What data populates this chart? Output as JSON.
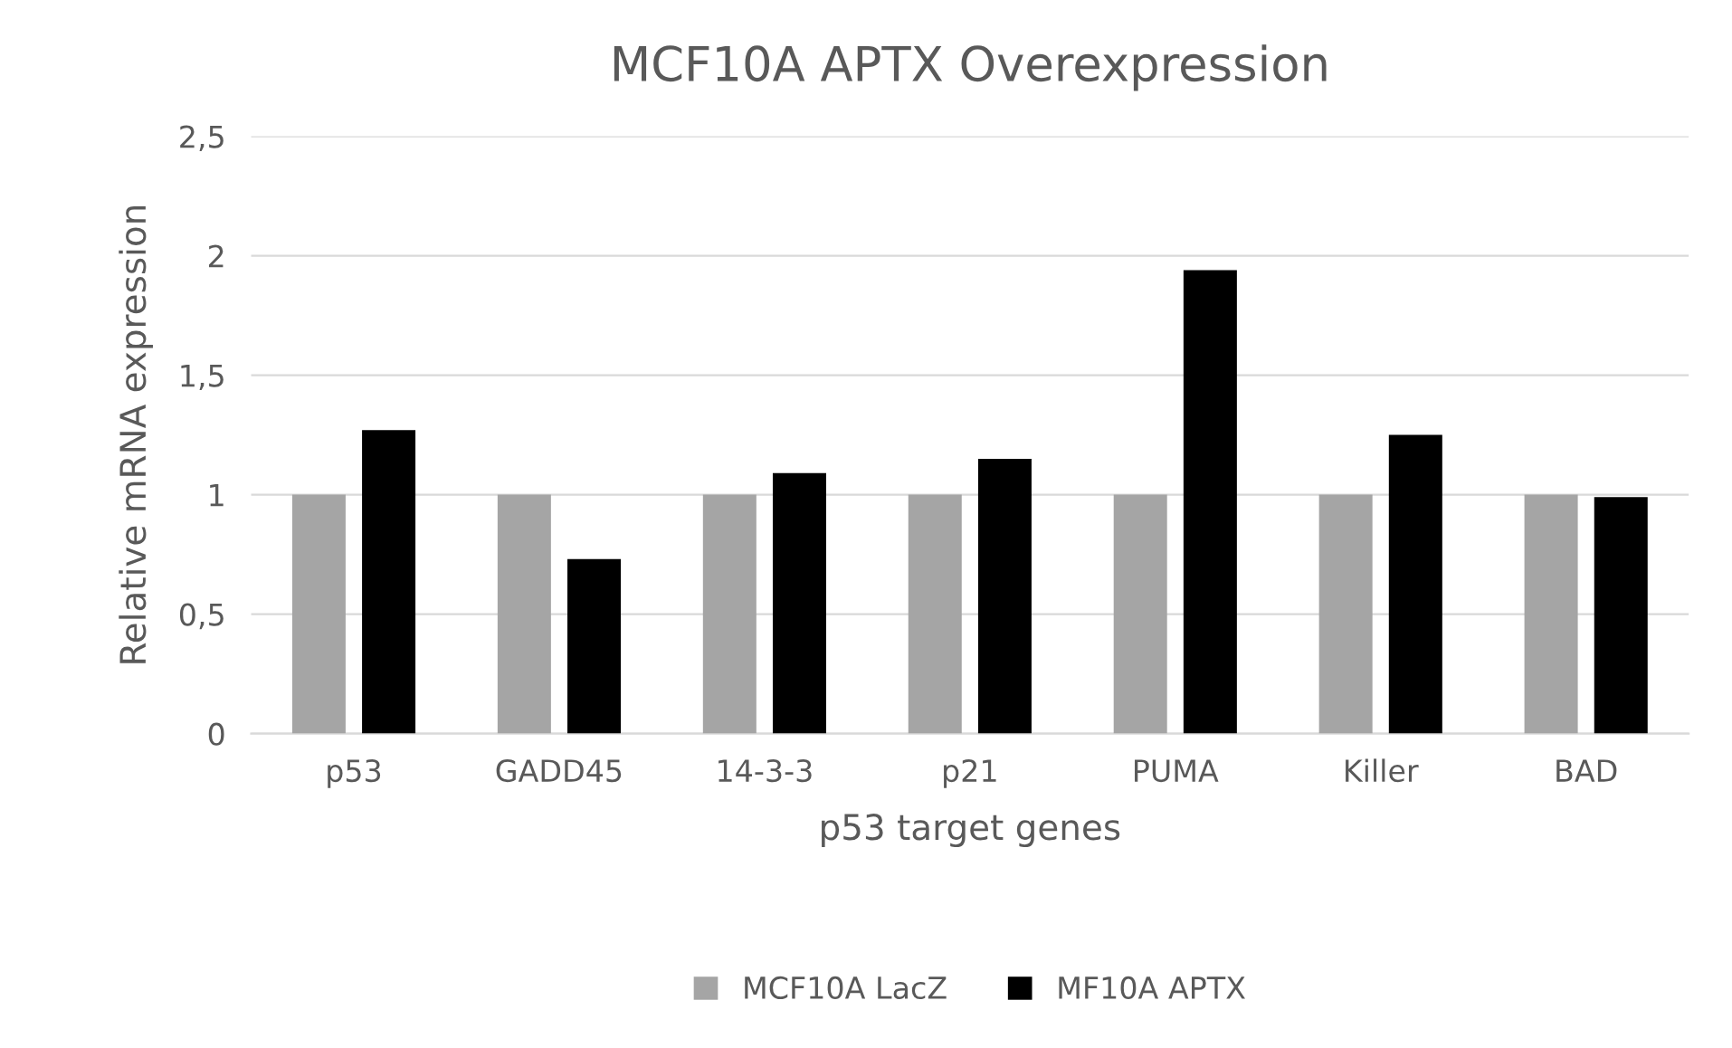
{
  "chart_data": {
    "type": "bar",
    "title": "MCF10A APTX Overexpression",
    "xlabel": "p53 target genes",
    "ylabel": "Relative mRNA expression",
    "categories": [
      "p53",
      "GADD45",
      "14-3-3",
      "p21",
      "PUMA",
      "Killer",
      "BAD"
    ],
    "series": [
      {
        "name": "MCF10A LacZ",
        "color": "#a5a5a5",
        "values": [
          1,
          1,
          1,
          1,
          1,
          1,
          1
        ]
      },
      {
        "name": "MF10A APTX",
        "color": "#000000",
        "values": [
          1.27,
          0.73,
          1.09,
          1.15,
          1.94,
          1.25,
          0.99
        ]
      }
    ],
    "ylim": [
      0,
      2.5
    ],
    "yticks": [
      0,
      {
        "value": 0.5,
        "label": "0,5"
      },
      1,
      {
        "value": 1.5,
        "label": "1,5"
      },
      2,
      {
        "value": 2.5,
        "label": "2,5"
      }
    ],
    "grid": "y",
    "legend": "bottom"
  }
}
